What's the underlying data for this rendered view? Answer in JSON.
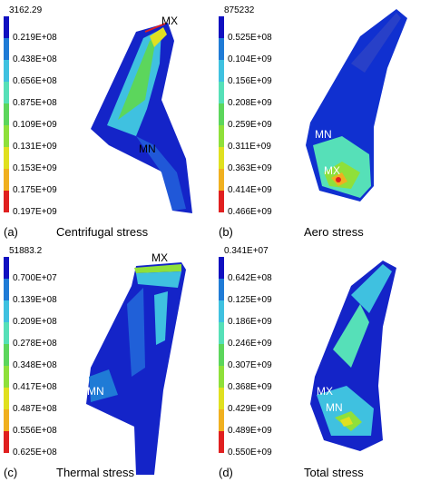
{
  "panels": [
    {
      "letter": "(a)",
      "title": "Centrifugal stress",
      "legend_top": "3162.29",
      "legend_labels": [
        "0.219E+08",
        "0.438E+08",
        "0.656E+08",
        "0.875E+08",
        "0.109E+09",
        "0.131E+09",
        "0.153E+09",
        "0.175E+09",
        "0.197E+09"
      ],
      "mx": "MX",
      "mn": "MN"
    },
    {
      "letter": "(b)",
      "title": "Aero stress",
      "legend_top": "875232",
      "legend_labels": [
        "0.525E+08",
        "0.104E+09",
        "0.156E+09",
        "0.208E+09",
        "0.259E+09",
        "0.311E+09",
        "0.363E+09",
        "0.414E+09",
        "0.466E+09"
      ],
      "mx": "MX",
      "mn": "MN"
    },
    {
      "letter": "(c)",
      "title": "Thermal stress",
      "legend_top": "51883.2",
      "legend_labels": [
        "0.700E+07",
        "0.139E+08",
        "0.209E+08",
        "0.278E+08",
        "0.348E+08",
        "0.417E+08",
        "0.487E+08",
        "0.556E+08",
        "0.625E+08"
      ],
      "mx": "MX",
      "mn": "MN"
    },
    {
      "letter": "(d)",
      "title": "Total stress",
      "legend_top": "0.341E+07",
      "legend_labels": [
        "0.642E+08",
        "0.125E+09",
        "0.186E+09",
        "0.246E+09",
        "0.307E+09",
        "0.368E+09",
        "0.429E+09",
        "0.489E+09",
        "0.550E+09"
      ],
      "mx": "MX",
      "mn": "MN"
    }
  ],
  "colors": {
    "scale": [
      "#1010c0",
      "#1f7bd6",
      "#3fc1e0",
      "#56e0b8",
      "#5cd65c",
      "#8fe03a",
      "#e0e020",
      "#f0b020",
      "#f06020",
      "#e02020"
    ]
  }
}
